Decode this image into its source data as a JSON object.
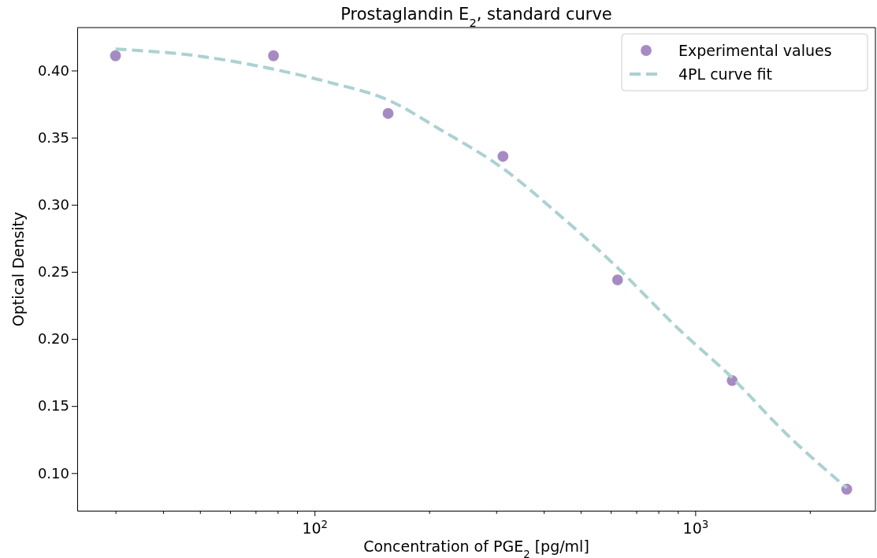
{
  "chart_data": {
    "type": "scatter",
    "title": "Prostaglandin E$_{2}$, standard curve",
    "xlabel": "Concentration of PGE$_{2}$ [pg/ml]",
    "ylabel": "Optical Density",
    "log": "x",
    "xlim": [
      23.8,
      2973
    ],
    "ylim": [
      0.072,
      0.432
    ],
    "xticks": [
      {
        "value": 30,
        "label": null
      },
      {
        "value": 40,
        "label": null
      },
      {
        "value": 50,
        "label": null
      },
      {
        "value": 60,
        "label": null
      },
      {
        "value": 70,
        "label": null
      },
      {
        "value": 80,
        "label": null
      },
      {
        "value": 90,
        "label": null
      },
      {
        "value": 100,
        "label": "10$^{2}$"
      },
      {
        "value": 200,
        "label": null
      },
      {
        "value": 300,
        "label": null
      },
      {
        "value": 400,
        "label": null
      },
      {
        "value": 500,
        "label": null
      },
      {
        "value": 600,
        "label": null
      },
      {
        "value": 700,
        "label": null
      },
      {
        "value": 800,
        "label": null
      },
      {
        "value": 900,
        "label": null
      },
      {
        "value": 1000,
        "label": "10$^{3}$"
      },
      {
        "value": 2000,
        "label": null
      }
    ],
    "yticks": [
      {
        "value": 0.1,
        "label": "0.10"
      },
      {
        "value": 0.15,
        "label": "0.15"
      },
      {
        "value": 0.2,
        "label": "0.20"
      },
      {
        "value": 0.25,
        "label": "0.25"
      },
      {
        "value": 0.3,
        "label": "0.30"
      },
      {
        "value": 0.35,
        "label": "0.35"
      },
      {
        "value": 0.4,
        "label": "0.40"
      }
    ],
    "grid": false,
    "legend": "top right",
    "series": [
      {
        "name": "Experimental values",
        "marker": "circle",
        "color": "#a68bc2",
        "x": [
          30,
          78,
          156,
          312.5,
          625,
          1250,
          2500
        ],
        "values": [
          0.411,
          0.411,
          0.368,
          0.336,
          0.244,
          0.169,
          0.088
        ]
      },
      {
        "name": "4PL curve fit",
        "type": "line",
        "line_style": "dashed",
        "color": "#acd1d1",
        "x": [
          30,
          49,
          78,
          110,
          156,
          214,
          312.5,
          437,
          625,
          892,
          1250,
          1738,
          2500
        ],
        "values": [
          0.416,
          0.411,
          0.401,
          0.391,
          0.378,
          0.356,
          0.327,
          0.293,
          0.253,
          0.209,
          0.171,
          0.129,
          0.089
        ]
      }
    ]
  }
}
